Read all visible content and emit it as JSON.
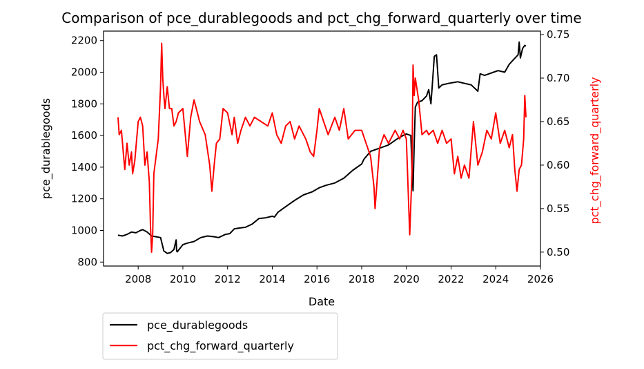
{
  "chart_data": {
    "type": "line",
    "title": "Comparison of pce_durablegoods and pct_chg_forward_quarterly over time",
    "xlabel": "Date",
    "ylabel_left": "pce_durablegoods",
    "ylabel_right": "pct_chg_forward_quarterly",
    "xlim": [
      2006.45,
      2026.0
    ],
    "x_ticks": [
      2008,
      2010,
      2012,
      2014,
      2016,
      2018,
      2020,
      2022,
      2024,
      2026
    ],
    "ylim_left": [
      775,
      2260
    ],
    "y_ticks_left": [
      800,
      1000,
      1200,
      1400,
      1600,
      1800,
      2000,
      2200
    ],
    "ylim_right": [
      0.484,
      0.754
    ],
    "y_ticks_right": [
      0.5,
      0.55,
      0.6,
      0.65,
      0.7,
      0.75
    ],
    "grid": false,
    "legend_placement": "below-left",
    "colors": {
      "left_series": "#000000",
      "right_series": "#ff0000",
      "right_axis": "#ff0000"
    },
    "series": [
      {
        "name": "pce_durablegoods",
        "axis": "left",
        "color": "#000000",
        "x": [
          2007.1,
          2007.3,
          2007.5,
          2007.7,
          2007.9,
          2008.1,
          2008.2,
          2008.4,
          2008.6,
          2008.8,
          2009.0,
          2009.15,
          2009.3,
          2009.45,
          2009.6,
          2009.7,
          2009.72,
          2009.75,
          2010.0,
          2010.2,
          2010.5,
          2010.8,
          2011.1,
          2011.4,
          2011.6,
          2011.9,
          2012.1,
          2012.3,
          2012.5,
          2012.8,
          2013.1,
          2013.4,
          2013.7,
          2014.0,
          2014.1,
          2014.25,
          2014.6,
          2015.0,
          2015.4,
          2015.8,
          2016.1,
          2016.4,
          2016.8,
          2017.2,
          2017.6,
          2018.0,
          2018.1,
          2018.4,
          2018.8,
          2019.2,
          2019.6,
          2019.85,
          2020.0,
          2020.2,
          2020.25,
          2020.3,
          2020.35,
          2020.4,
          2020.5,
          2020.7,
          2020.9,
          2021.0,
          2021.1,
          2021.15,
          2021.25,
          2021.35,
          2021.45,
          2021.6,
          2021.9,
          2022.3,
          2022.6,
          2022.9,
          2023.2,
          2023.3,
          2023.5,
          2023.9,
          2024.1,
          2024.4,
          2024.6,
          2024.8,
          2025.0,
          2025.05,
          2025.1,
          2025.2,
          2025.3,
          2025.35
        ],
        "y": [
          970,
          965,
          975,
          990,
          985,
          1000,
          1005,
          990,
          965,
          960,
          955,
          870,
          855,
          860,
          880,
          940,
          870,
          865,
          910,
          920,
          930,
          955,
          965,
          960,
          955,
          975,
          980,
          1010,
          1015,
          1020,
          1040,
          1075,
          1080,
          1090,
          1085,
          1115,
          1150,
          1190,
          1225,
          1245,
          1270,
          1285,
          1300,
          1330,
          1380,
          1420,
          1450,
          1500,
          1520,
          1540,
          1580,
          1600,
          1610,
          1600,
          1400,
          1250,
          1550,
          1780,
          1810,
          1820,
          1850,
          1890,
          1800,
          1900,
          2100,
          2110,
          1900,
          1920,
          1930,
          1940,
          1930,
          1920,
          1880,
          1990,
          1980,
          2000,
          2010,
          2000,
          2050,
          2080,
          2110,
          2190,
          2090,
          2150,
          2170,
          2165
        ]
      },
      {
        "name": "pct_chg_forward_quarterly",
        "axis": "right",
        "color": "#ff0000",
        "x": [
          2007.1,
          2007.15,
          2007.25,
          2007.35,
          2007.4,
          2007.5,
          2007.6,
          2007.7,
          2007.75,
          2007.85,
          2008.0,
          2008.1,
          2008.2,
          2008.3,
          2008.4,
          2008.5,
          2008.55,
          2008.6,
          2008.65,
          2008.7,
          2008.8,
          2008.9,
          2009.0,
          2009.05,
          2009.1,
          2009.15,
          2009.2,
          2009.3,
          2009.4,
          2009.5,
          2009.6,
          2009.7,
          2009.8,
          2010.0,
          2010.2,
          2010.35,
          2010.5,
          2010.6,
          2010.75,
          2011.0,
          2011.2,
          2011.3,
          2011.4,
          2011.5,
          2011.65,
          2011.8,
          2012.0,
          2012.2,
          2012.3,
          2012.45,
          2012.6,
          2012.8,
          2013.0,
          2013.2,
          2013.5,
          2013.8,
          2014.0,
          2014.2,
          2014.4,
          2014.6,
          2014.8,
          2015.0,
          2015.2,
          2015.5,
          2015.7,
          2015.85,
          2016.0,
          2016.1,
          2016.3,
          2016.5,
          2016.8,
          2017.0,
          2017.2,
          2017.4,
          2017.7,
          2018.0,
          2018.2,
          2018.4,
          2018.55,
          2018.6,
          2018.7,
          2018.8,
          2019.0,
          2019.2,
          2019.5,
          2019.7,
          2019.85,
          2020.0,
          2020.15,
          2020.25,
          2020.3,
          2020.35,
          2020.4,
          2020.55,
          2020.7,
          2020.9,
          2021.0,
          2021.2,
          2021.4,
          2021.6,
          2021.8,
          2022.0,
          2022.15,
          2022.3,
          2022.45,
          2022.6,
          2022.8,
          2023.0,
          2023.2,
          2023.4,
          2023.6,
          2023.8,
          2024.0,
          2024.2,
          2024.4,
          2024.6,
          2024.75,
          2024.85,
          2024.95,
          2025.05,
          2025.15,
          2025.25,
          2025.3,
          2025.35
        ],
        "y": [
          0.655,
          0.635,
          0.64,
          0.61,
          0.595,
          0.625,
          0.6,
          0.615,
          0.59,
          0.605,
          0.65,
          0.655,
          0.645,
          0.6,
          0.615,
          0.58,
          0.53,
          0.5,
          0.52,
          0.59,
          0.61,
          0.63,
          0.69,
          0.74,
          0.7,
          0.68,
          0.665,
          0.69,
          0.665,
          0.665,
          0.645,
          0.65,
          0.66,
          0.665,
          0.61,
          0.655,
          0.675,
          0.665,
          0.65,
          0.635,
          0.6,
          0.57,
          0.6,
          0.625,
          0.63,
          0.665,
          0.66,
          0.635,
          0.655,
          0.625,
          0.64,
          0.655,
          0.645,
          0.655,
          0.65,
          0.645,
          0.66,
          0.635,
          0.625,
          0.645,
          0.65,
          0.63,
          0.645,
          0.63,
          0.615,
          0.61,
          0.64,
          0.665,
          0.65,
          0.635,
          0.655,
          0.64,
          0.665,
          0.63,
          0.64,
          0.64,
          0.625,
          0.61,
          0.575,
          0.55,
          0.585,
          0.62,
          0.635,
          0.625,
          0.64,
          0.63,
          0.64,
          0.63,
          0.52,
          0.59,
          0.715,
          0.68,
          0.7,
          0.675,
          0.635,
          0.64,
          0.635,
          0.64,
          0.625,
          0.64,
          0.625,
          0.63,
          0.59,
          0.61,
          0.585,
          0.6,
          0.585,
          0.65,
          0.6,
          0.615,
          0.64,
          0.63,
          0.66,
          0.625,
          0.64,
          0.62,
          0.635,
          0.595,
          0.57,
          0.595,
          0.6,
          0.63,
          0.68,
          0.655
        ]
      }
    ]
  }
}
